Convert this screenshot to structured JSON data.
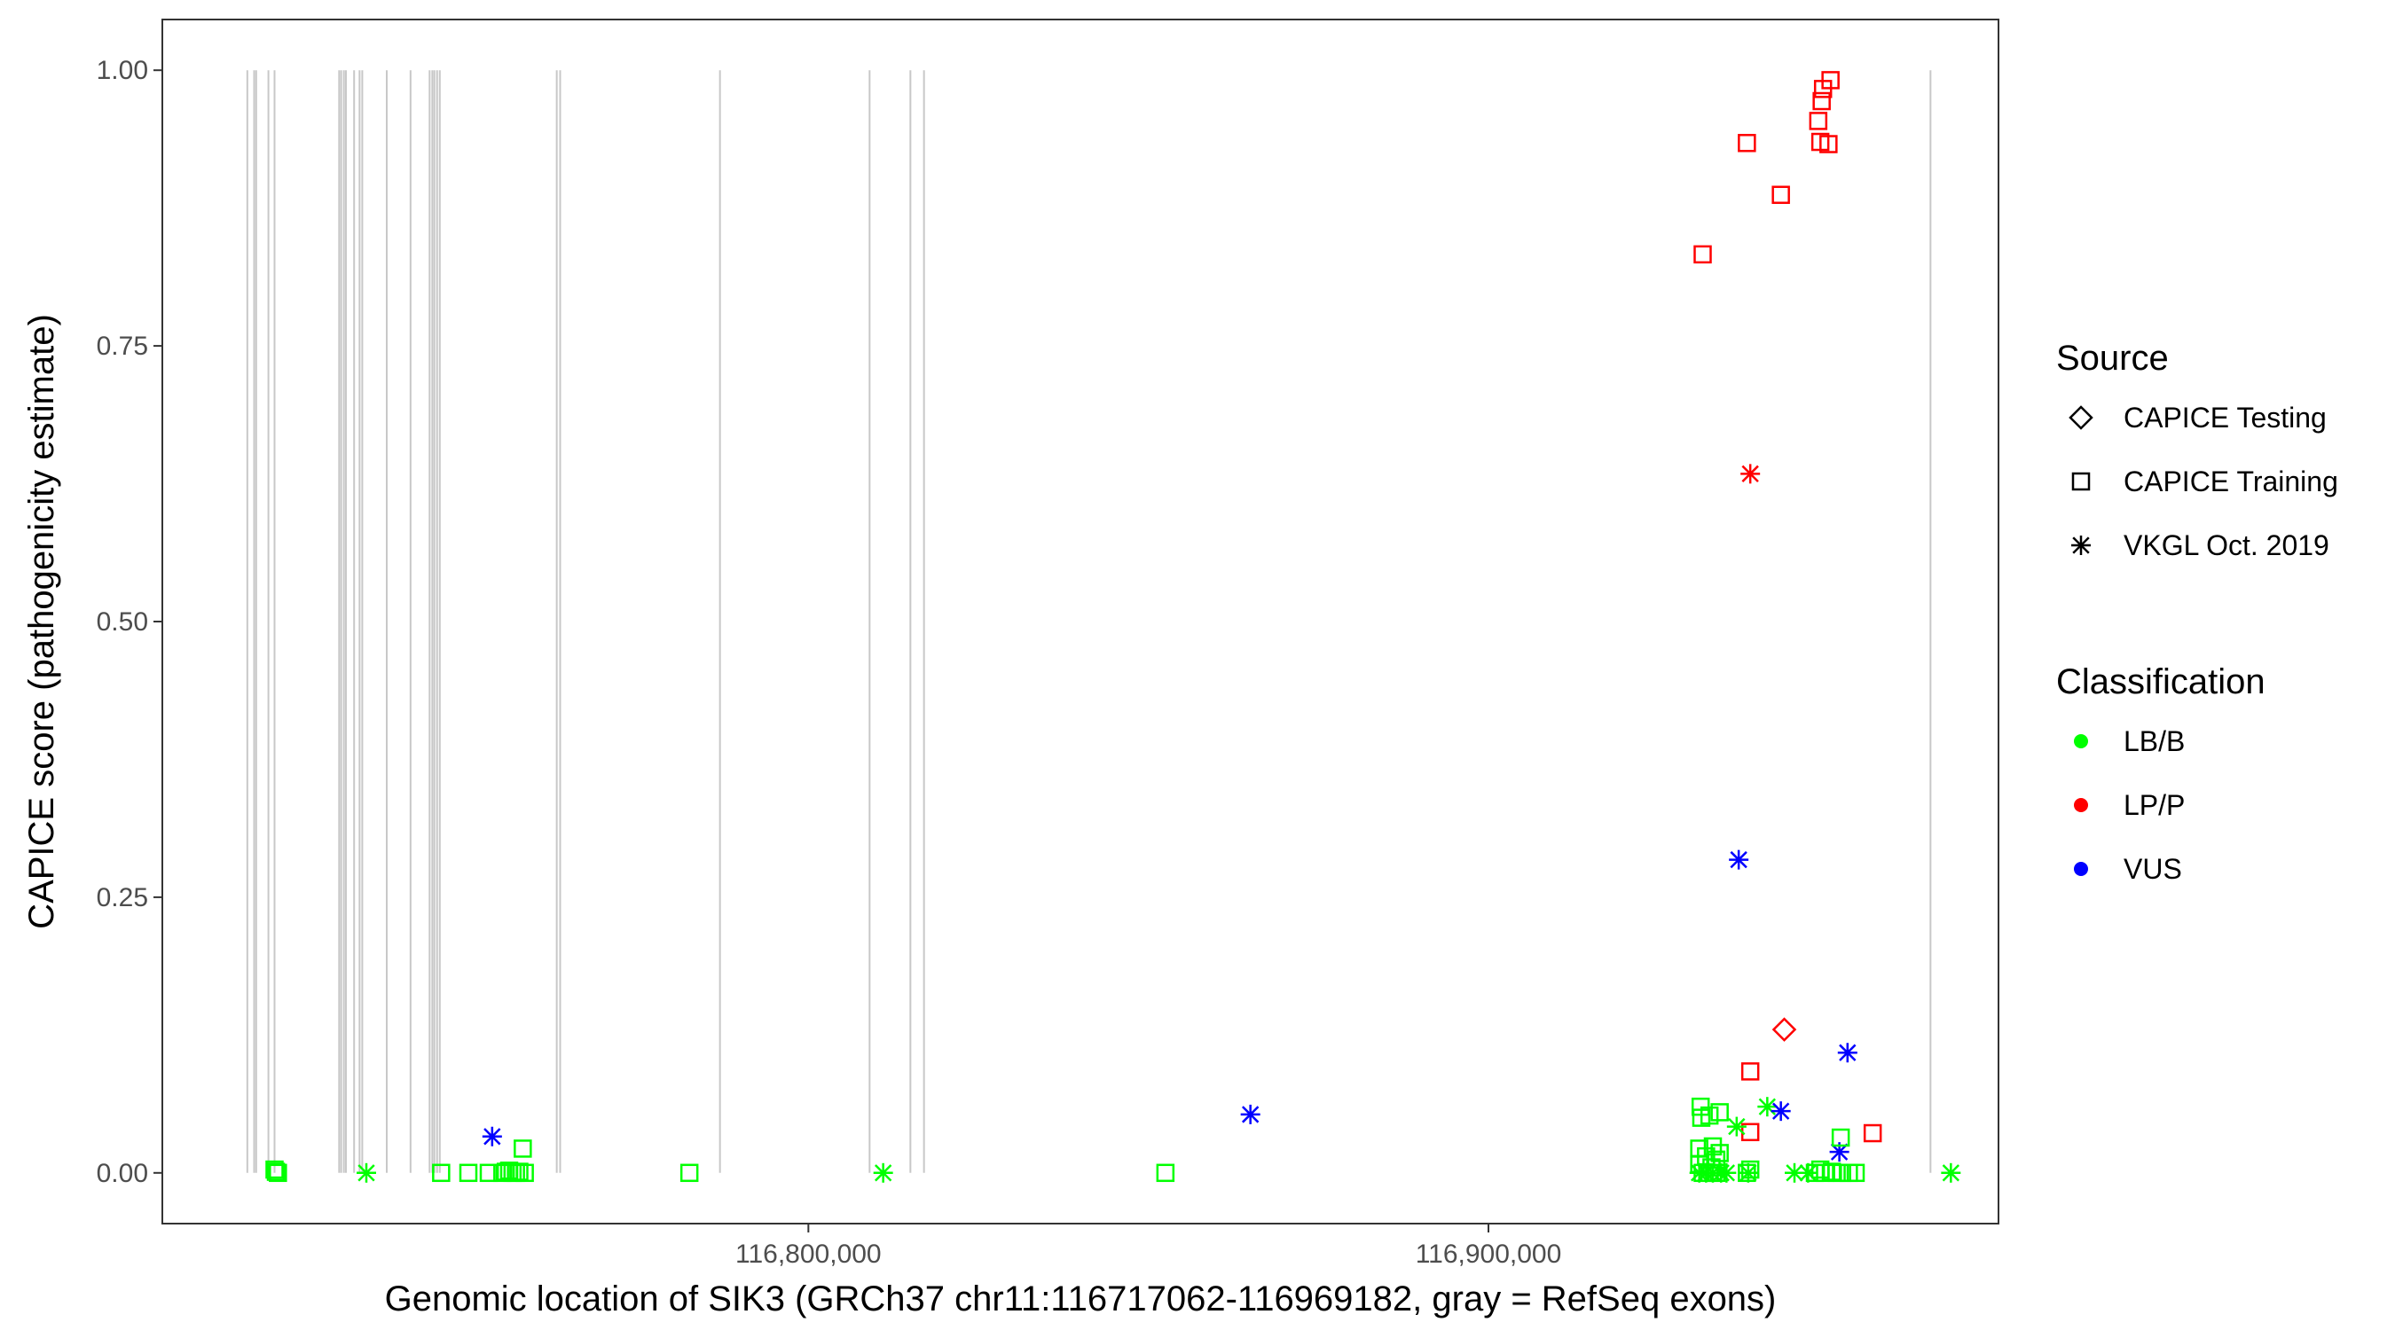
{
  "chart_data": {
    "type": "scatter",
    "xlabel": "Genomic location of SIK3 (GRCh37 chr11:116717062-116969182, gray = RefSeq exons)",
    "ylabel": "CAPICE score (pathogenicity estimate)",
    "xlim": [
      116705000,
      116975000
    ],
    "ylim": [
      -0.046,
      1.046
    ],
    "x_ticks": [
      116800000,
      116900000
    ],
    "x_tick_labels": [
      "116,800,000",
      "116,900,000"
    ],
    "y_ticks": [
      0,
      0.25,
      0.5,
      0.75,
      1
    ],
    "y_tick_labels": [
      "0.00",
      "0.25",
      "0.50",
      "0.75",
      "1.00"
    ],
    "grid": false,
    "exons": [
      116717500,
      116718500,
      116718800,
      116720600,
      116721500,
      116731000,
      116731300,
      116731700,
      116732000,
      116733200,
      116734000,
      116734400,
      116738000,
      116741500,
      116744300,
      116744700,
      116745000,
      116745400,
      116745800,
      116763000,
      116763500,
      116787000,
      116809000,
      116815000,
      116817000,
      116965000
    ],
    "legend_shape": {
      "title": "Source",
      "placement": "right",
      "entries": [
        {
          "label": "CAPICE Testing",
          "shape": "diamond"
        },
        {
          "label": "CAPICE Training",
          "shape": "square"
        },
        {
          "label": "VKGL Oct. 2019",
          "shape": "asterisk"
        }
      ]
    },
    "legend_color": {
      "title": "Classification",
      "placement": "right",
      "entries": [
        {
          "label": "LB/B",
          "color": "#00ff00"
        },
        {
          "label": "LP/P",
          "color": "#ff0000"
        },
        {
          "label": "VUS",
          "color": "#0000ff"
        }
      ]
    },
    "points": [
      {
        "x": 116721500,
        "y": 0.003,
        "source": "CAPICE Training",
        "class": "LB/B"
      },
      {
        "x": 116722000,
        "y": 0.0,
        "source": "CAPICE Training",
        "class": "LB/B"
      },
      {
        "x": 116721700,
        "y": 0.001,
        "source": "CAPICE Training",
        "class": "LB/B"
      },
      {
        "x": 116735000,
        "y": 0.0,
        "source": "VKGL Oct. 2019",
        "class": "LB/B"
      },
      {
        "x": 116746000,
        "y": 0.0,
        "source": "CAPICE Training",
        "class": "LB/B"
      },
      {
        "x": 116750000,
        "y": 0.0,
        "source": "CAPICE Training",
        "class": "LB/B"
      },
      {
        "x": 116753000,
        "y": 0.0,
        "source": "CAPICE Training",
        "class": "LB/B"
      },
      {
        "x": 116753500,
        "y": 0.033,
        "source": "VKGL Oct. 2019",
        "class": "VUS"
      },
      {
        "x": 116755000,
        "y": 0.0,
        "source": "CAPICE Training",
        "class": "LB/B"
      },
      {
        "x": 116755500,
        "y": 0.001,
        "source": "CAPICE Training",
        "class": "LB/B"
      },
      {
        "x": 116756000,
        "y": 0.002,
        "source": "CAPICE Training",
        "class": "LB/B"
      },
      {
        "x": 116756500,
        "y": 0.0,
        "source": "CAPICE Training",
        "class": "LB/B"
      },
      {
        "x": 116757000,
        "y": 0.0,
        "source": "CAPICE Training",
        "class": "LB/B"
      },
      {
        "x": 116757500,
        "y": 0.001,
        "source": "CAPICE Training",
        "class": "LB/B"
      },
      {
        "x": 116758000,
        "y": 0.022,
        "source": "CAPICE Training",
        "class": "LB/B"
      },
      {
        "x": 116758300,
        "y": 0.0,
        "source": "CAPICE Training",
        "class": "LB/B"
      },
      {
        "x": 116782500,
        "y": 0.0,
        "source": "CAPICE Training",
        "class": "LB/B"
      },
      {
        "x": 116811000,
        "y": 0.0,
        "source": "VKGL Oct. 2019",
        "class": "LB/B"
      },
      {
        "x": 116852500,
        "y": 0.0,
        "source": "CAPICE Training",
        "class": "LB/B"
      },
      {
        "x": 116865000,
        "y": 0.053,
        "source": "VKGL Oct. 2019",
        "class": "VUS"
      },
      {
        "x": 116931500,
        "y": 0.833,
        "source": "CAPICE Training",
        "class": "LP/P"
      },
      {
        "x": 116938000,
        "y": 0.934,
        "source": "CAPICE Training",
        "class": "LP/P"
      },
      {
        "x": 116943000,
        "y": 0.887,
        "source": "CAPICE Training",
        "class": "LP/P"
      },
      {
        "x": 116948500,
        "y": 0.954,
        "source": "CAPICE Training",
        "class": "LP/P"
      },
      {
        "x": 116948800,
        "y": 0.935,
        "source": "CAPICE Training",
        "class": "LP/P"
      },
      {
        "x": 116949000,
        "y": 0.972,
        "source": "CAPICE Training",
        "class": "LP/P"
      },
      {
        "x": 116949200,
        "y": 0.983,
        "source": "CAPICE Training",
        "class": "LP/P"
      },
      {
        "x": 116950300,
        "y": 0.991,
        "source": "CAPICE Training",
        "class": "LP/P"
      },
      {
        "x": 116950000,
        "y": 0.933,
        "source": "CAPICE Training",
        "class": "LP/P"
      },
      {
        "x": 116938500,
        "y": 0.634,
        "source": "VKGL Oct. 2019",
        "class": "LP/P"
      },
      {
        "x": 116936800,
        "y": 0.284,
        "source": "VKGL Oct. 2019",
        "class": "VUS"
      },
      {
        "x": 116943500,
        "y": 0.13,
        "source": "CAPICE Testing",
        "class": "LP/P"
      },
      {
        "x": 116952800,
        "y": 0.109,
        "source": "VKGL Oct. 2019",
        "class": "VUS"
      },
      {
        "x": 116938500,
        "y": 0.092,
        "source": "CAPICE Training",
        "class": "LP/P"
      },
      {
        "x": 116938500,
        "y": 0.037,
        "source": "CAPICE Training",
        "class": "LP/P"
      },
      {
        "x": 116956500,
        "y": 0.036,
        "source": "CAPICE Training",
        "class": "LP/P"
      },
      {
        "x": 116941000,
        "y": 0.06,
        "source": "VKGL Oct. 2019",
        "class": "LB/B"
      },
      {
        "x": 116943000,
        "y": 0.056,
        "source": "VKGL Oct. 2019",
        "class": "VUS"
      },
      {
        "x": 116936500,
        "y": 0.042,
        "source": "VKGL Oct. 2019",
        "class": "LB/B"
      },
      {
        "x": 116951600,
        "y": 0.019,
        "source": "VKGL Oct. 2019",
        "class": "VUS"
      },
      {
        "x": 116931200,
        "y": 0.06,
        "source": "CAPICE Training",
        "class": "LB/B"
      },
      {
        "x": 116931300,
        "y": 0.05,
        "source": "CAPICE Training",
        "class": "LB/B"
      },
      {
        "x": 116932500,
        "y": 0.052,
        "source": "CAPICE Training",
        "class": "LB/B"
      },
      {
        "x": 116934000,
        "y": 0.055,
        "source": "CAPICE Training",
        "class": "LB/B"
      },
      {
        "x": 116931000,
        "y": 0.022,
        "source": "CAPICE Training",
        "class": "LB/B"
      },
      {
        "x": 116932000,
        "y": 0.015,
        "source": "CAPICE Training",
        "class": "LB/B"
      },
      {
        "x": 116933000,
        "y": 0.024,
        "source": "CAPICE Training",
        "class": "LB/B"
      },
      {
        "x": 116933500,
        "y": 0.012,
        "source": "CAPICE Training",
        "class": "LB/B"
      },
      {
        "x": 116934000,
        "y": 0.018,
        "source": "CAPICE Training",
        "class": "LB/B"
      },
      {
        "x": 116931000,
        "y": 0.008,
        "source": "CAPICE Training",
        "class": "LB/B"
      },
      {
        "x": 116932800,
        "y": 0.005,
        "source": "CAPICE Training",
        "class": "LB/B"
      },
      {
        "x": 116951800,
        "y": 0.032,
        "source": "CAPICE Training",
        "class": "LB/B"
      },
      {
        "x": 116931000,
        "y": 0.0,
        "source": "VKGL Oct. 2019",
        "class": "LB/B"
      },
      {
        "x": 116932000,
        "y": 0.0,
        "source": "VKGL Oct. 2019",
        "class": "LB/B"
      },
      {
        "x": 116933000,
        "y": 0.0,
        "source": "VKGL Oct. 2019",
        "class": "LB/B"
      },
      {
        "x": 116934200,
        "y": 0.0,
        "source": "VKGL Oct. 2019",
        "class": "LB/B"
      },
      {
        "x": 116935000,
        "y": 0.0,
        "source": "VKGL Oct. 2019",
        "class": "LB/B"
      },
      {
        "x": 116931500,
        "y": 0.0,
        "source": "CAPICE Training",
        "class": "LB/B"
      },
      {
        "x": 116932500,
        "y": 0.0,
        "source": "CAPICE Training",
        "class": "LB/B"
      },
      {
        "x": 116933500,
        "y": 0.0,
        "source": "CAPICE Training",
        "class": "LB/B"
      },
      {
        "x": 116938000,
        "y": 0.0,
        "source": "CAPICE Training",
        "class": "LB/B"
      },
      {
        "x": 116938500,
        "y": 0.003,
        "source": "CAPICE Training",
        "class": "LB/B"
      },
      {
        "x": 116938200,
        "y": 0.0,
        "source": "VKGL Oct. 2019",
        "class": "LB/B"
      },
      {
        "x": 116945000,
        "y": 0.0,
        "source": "VKGL Oct. 2019",
        "class": "LB/B"
      },
      {
        "x": 116947000,
        "y": 0.0,
        "source": "VKGL Oct. 2019",
        "class": "LB/B"
      },
      {
        "x": 116948000,
        "y": 0.0,
        "source": "CAPICE Training",
        "class": "LB/B"
      },
      {
        "x": 116948800,
        "y": 0.003,
        "source": "CAPICE Training",
        "class": "LB/B"
      },
      {
        "x": 116949500,
        "y": 0.0,
        "source": "CAPICE Training",
        "class": "LB/B"
      },
      {
        "x": 116950500,
        "y": 0.001,
        "source": "CAPICE Training",
        "class": "LB/B"
      },
      {
        "x": 116951200,
        "y": 0.0,
        "source": "CAPICE Training",
        "class": "LB/B"
      },
      {
        "x": 116952000,
        "y": 0.0,
        "source": "CAPICE Training",
        "class": "LB/B"
      },
      {
        "x": 116953000,
        "y": 0.0,
        "source": "CAPICE Training",
        "class": "LB/B"
      },
      {
        "x": 116954000,
        "y": 0.0,
        "source": "CAPICE Training",
        "class": "LB/B"
      },
      {
        "x": 116968000,
        "y": 0.0,
        "source": "VKGL Oct. 2019",
        "class": "LB/B"
      }
    ]
  }
}
